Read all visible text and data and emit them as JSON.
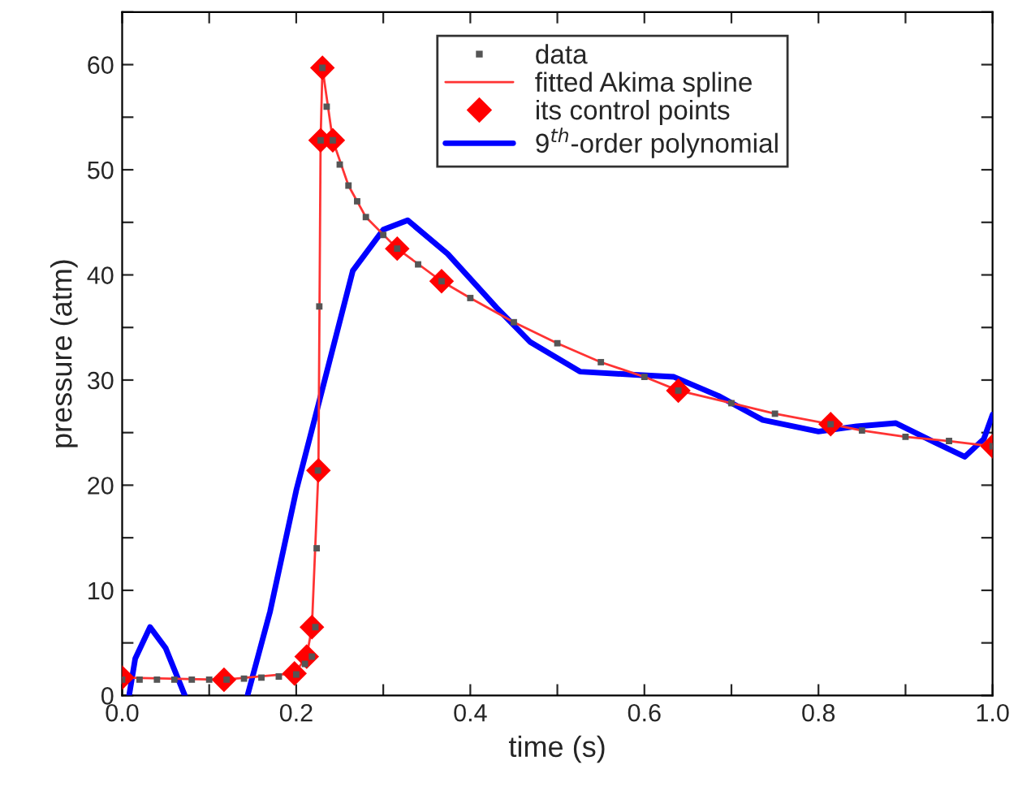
{
  "chart_data": {
    "type": "line",
    "xlabel": "time (s)",
    "ylabel": "pressure (atm)",
    "xlim": [
      0,
      1
    ],
    "ylim": [
      0,
      65
    ],
    "xticks": [
      {
        "value": 0,
        "label": "0.0"
      },
      {
        "value": 0.1,
        "label": null
      },
      {
        "value": 0.2,
        "label": "0.2"
      },
      {
        "value": 0.3,
        "label": null
      },
      {
        "value": 0.4,
        "label": "0.4"
      },
      {
        "value": 0.5,
        "label": null
      },
      {
        "value": 0.6,
        "label": "0.6"
      },
      {
        "value": 0.7,
        "label": null
      },
      {
        "value": 0.8,
        "label": "0.8"
      },
      {
        "value": 0.9,
        "label": null
      },
      {
        "value": 1,
        "label": "1.0"
      }
    ],
    "yticks": [
      0,
      {
        "value": 5,
        "label": null
      },
      10,
      {
        "value": 15,
        "label": null
      },
      20,
      {
        "value": 25,
        "label": null
      },
      30,
      {
        "value": 35,
        "label": null
      },
      40,
      {
        "value": 45,
        "label": null
      },
      50,
      {
        "value": 55,
        "label": null
      },
      60,
      {
        "value": 65,
        "label": null
      }
    ],
    "grid": false,
    "legend": "top right",
    "series": [
      {
        "name": "data",
        "type": "scatter",
        "marker": "square",
        "color": "#555555",
        "x": [
          0,
          0.02,
          0.04,
          0.06,
          0.08,
          0.1,
          0.12,
          0.14,
          0.16,
          0.18,
          0.2,
          0.21,
          0.218,
          0.222,
          0.2235,
          0.225,
          0.2265,
          0.228,
          0.23,
          0.235,
          0.242,
          0.25,
          0.26,
          0.27,
          0.28,
          0.3,
          0.316,
          0.34,
          0.367,
          0.4,
          0.45,
          0.5,
          0.55,
          0.6,
          0.639,
          0.7,
          0.75,
          0.814,
          0.85,
          0.9,
          0.95,
          1.0
        ],
        "values": [
          1.5,
          1.5,
          1.5,
          1.5,
          1.5,
          1.5,
          1.5,
          1.6,
          1.7,
          1.8,
          2.0,
          3.0,
          3.7,
          6.5,
          14,
          21.4,
          37,
          52.8,
          59.7,
          56,
          52.8,
          50.5,
          48.5,
          47,
          45.5,
          43.8,
          42.5,
          41,
          39.4,
          37.8,
          35.5,
          33.5,
          31.7,
          30.3,
          29.0,
          27.8,
          26.8,
          25.8,
          25.2,
          24.6,
          24.2,
          23.7
        ]
      },
      {
        "name": "fitted Akima spline",
        "color": "#ff3333",
        "x": [
          0,
          0.117,
          0.198,
          0.212,
          0.218,
          0.2255,
          0.228,
          0.2301,
          0.242,
          0.26,
          0.28,
          0.316,
          0.367,
          0.4,
          0.45,
          0.5,
          0.55,
          0.6,
          0.639,
          0.7,
          0.75,
          0.814,
          0.85,
          0.9,
          0.95,
          1.0
        ],
        "values": [
          1.7,
          1.5,
          2.1,
          3.7,
          6.5,
          21.4,
          52.8,
          59.7,
          52.8,
          48.5,
          45.5,
          42.5,
          39.4,
          37.8,
          35.5,
          33.5,
          31.7,
          30.3,
          29.0,
          27.8,
          26.8,
          25.8,
          25.2,
          24.6,
          24.2,
          23.7
        ]
      },
      {
        "name": "its control points",
        "type": "scatter",
        "marker": "diamond",
        "color": "#ff0000",
        "x": [
          0,
          0.117,
          0.198,
          0.212,
          0.218,
          0.2255,
          0.228,
          0.2301,
          0.242,
          0.316,
          0.367,
          0.639,
          0.814,
          1.0
        ],
        "values": [
          1.7,
          1.5,
          2.1,
          3.7,
          6.5,
          21.4,
          52.8,
          59.7,
          52.8,
          42.5,
          39.4,
          29.0,
          25.8,
          23.7
        ]
      },
      {
        "name": "9$^{th}$-order polynomial",
        "color": "#0000ff",
        "x": [
          0.008,
          0.015,
          0.032,
          0.05,
          0.072,
          0.1,
          0.144,
          0.17,
          0.2,
          0.2268,
          0.265,
          0.3,
          0.328,
          0.374,
          0.43,
          0.469,
          0.526,
          0.589,
          0.634,
          0.685,
          0.736,
          0.8,
          0.844,
          0.889,
          0.933,
          0.968,
          0.99,
          1.0
        ],
        "values": [
          0,
          3.5,
          6.5,
          4.5,
          0,
          null,
          0,
          8,
          19.5,
          28.1,
          40.4,
          44.3,
          45.2,
          42,
          36.9,
          33.6,
          30.8,
          30.5,
          30.3,
          28.5,
          26.2,
          25.1,
          25.6,
          25.9,
          24.1,
          22.7,
          24.4,
          26.7
        ]
      }
    ]
  }
}
